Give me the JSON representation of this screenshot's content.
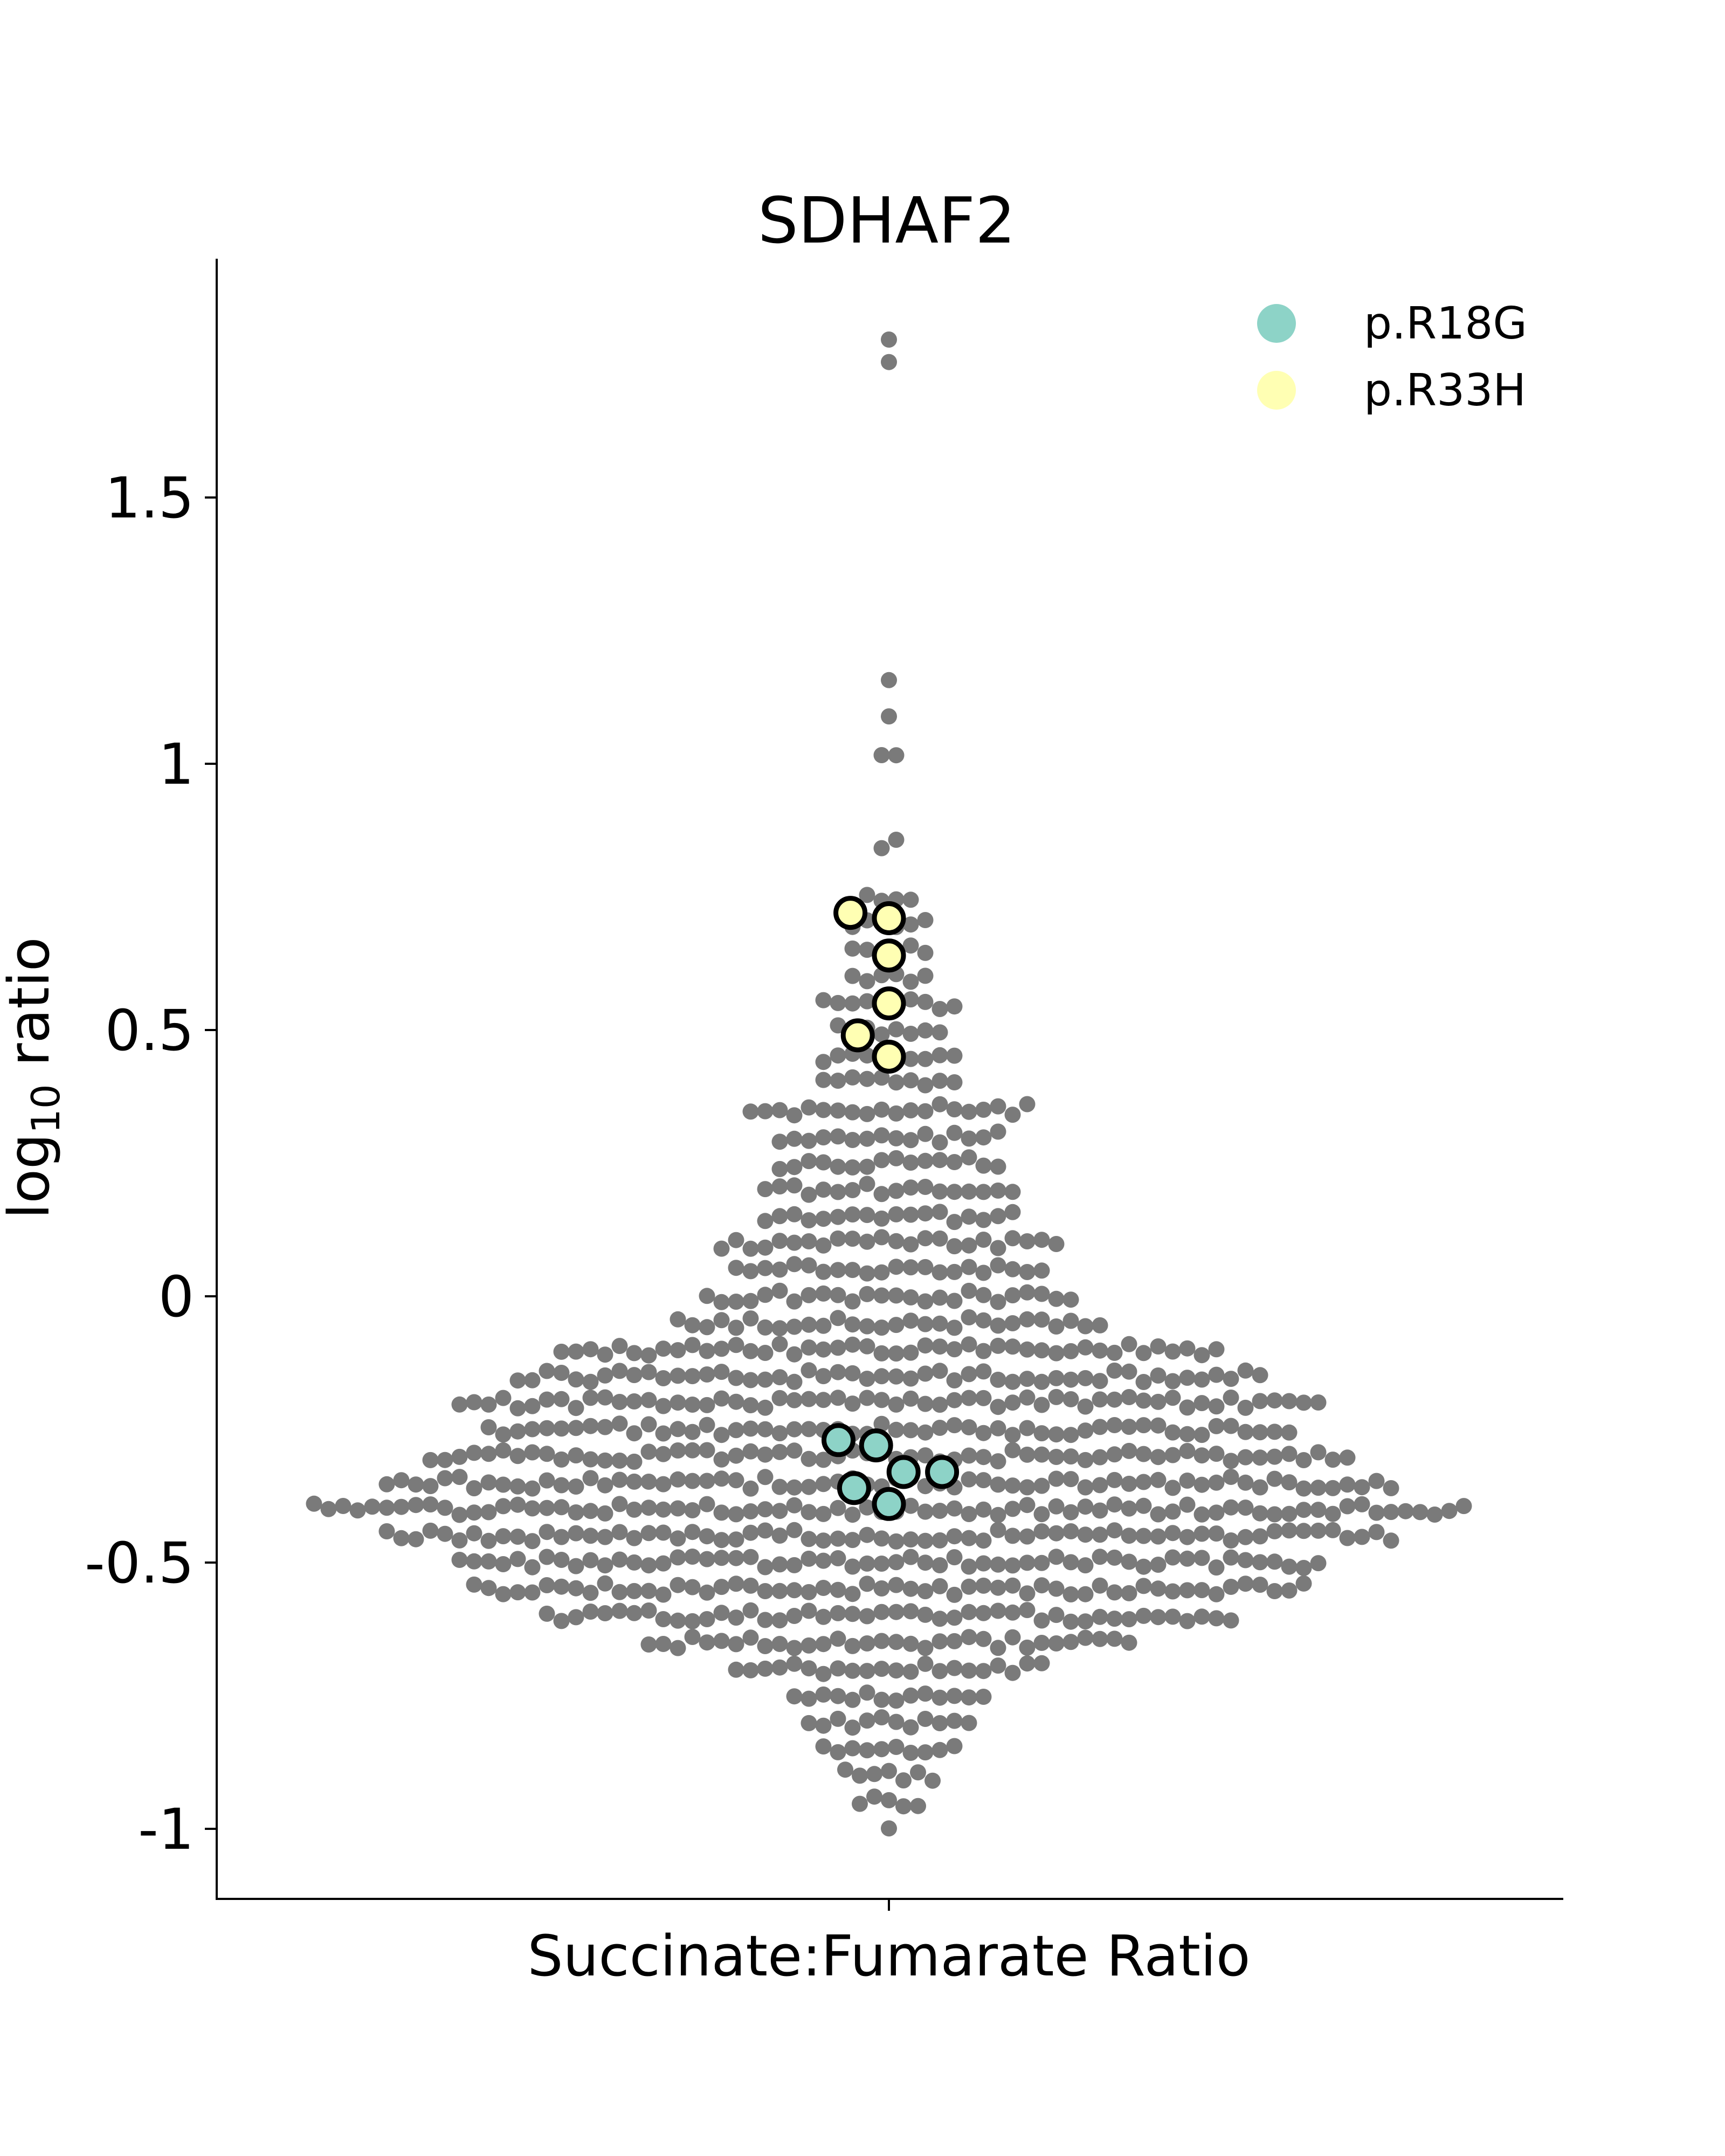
{
  "chart_data": {
    "type": "scatter",
    "subtype": "swarm",
    "title": "SDHAF2",
    "xlabel": "Succinate:Fumarate Ratio",
    "ylabel": "log",
    "ylabel_subscript": "10",
    "ylabel_suffix": " ratio",
    "ylim": [
      -1.13,
      1.94
    ],
    "yticks": [
      {
        "value": -1,
        "label": "-1"
      },
      {
        "value": -0.5,
        "label": "-0.5"
      },
      {
        "value": 0,
        "label": "0"
      },
      {
        "value": 0.5,
        "label": "0.5"
      },
      {
        "value": 1,
        "label": "1"
      },
      {
        "value": 1.5,
        "label": "1.5"
      }
    ],
    "grid": false,
    "legend_position": "top-right",
    "background_color": "#7a7a7a",
    "background_distribution": [
      {
        "y": 1.8,
        "count": 1
      },
      {
        "y": 1.75,
        "count": 1
      },
      {
        "y": 1.16,
        "count": 1
      },
      {
        "y": 1.1,
        "count": 1
      },
      {
        "y": 1.02,
        "count": 2
      },
      {
        "y": 0.85,
        "count": 2
      },
      {
        "y": 0.75,
        "count": 4
      },
      {
        "y": 0.7,
        "count": 6
      },
      {
        "y": 0.65,
        "count": 6
      },
      {
        "y": 0.6,
        "count": 6
      },
      {
        "y": 0.55,
        "count": 10
      },
      {
        "y": 0.5,
        "count": 8
      },
      {
        "y": 0.45,
        "count": 10
      },
      {
        "y": 0.4,
        "count": 10
      },
      {
        "y": 0.35,
        "count": 20
      },
      {
        "y": 0.3,
        "count": 16
      },
      {
        "y": 0.25,
        "count": 16
      },
      {
        "y": 0.2,
        "count": 18
      },
      {
        "y": 0.15,
        "count": 18
      },
      {
        "y": 0.1,
        "count": 24
      },
      {
        "y": 0.05,
        "count": 22
      },
      {
        "y": 0.0,
        "count": 26
      },
      {
        "y": -0.05,
        "count": 30
      },
      {
        "y": -0.1,
        "count": 46
      },
      {
        "y": -0.15,
        "count": 52
      },
      {
        "y": -0.2,
        "count": 60
      },
      {
        "y": -0.25,
        "count": 56
      },
      {
        "y": -0.3,
        "count": 64
      },
      {
        "y": -0.35,
        "count": 70
      },
      {
        "y": -0.4,
        "count": 80
      },
      {
        "y": -0.45,
        "count": 70
      },
      {
        "y": -0.5,
        "count": 60
      },
      {
        "y": -0.55,
        "count": 58
      },
      {
        "y": -0.6,
        "count": 48
      },
      {
        "y": -0.65,
        "count": 34
      },
      {
        "y": -0.7,
        "count": 22
      },
      {
        "y": -0.75,
        "count": 14
      },
      {
        "y": -0.8,
        "count": 12
      },
      {
        "y": -0.85,
        "count": 10
      },
      {
        "y": -0.9,
        "count": 7
      },
      {
        "y": -0.95,
        "count": 5
      },
      {
        "y": -0.99,
        "count": 1
      }
    ],
    "series": [
      {
        "name": "p.R18G",
        "color": "#8dd3c7",
        "points": [
          {
            "y": -0.27,
            "offset": -0.55
          },
          {
            "y": -0.28,
            "offset": -0.14
          },
          {
            "y": -0.33,
            "offset": 0.16
          },
          {
            "y": -0.33,
            "offset": 0.58
          },
          {
            "y": -0.36,
            "offset": -0.38
          },
          {
            "y": -0.39,
            "offset": 0.0
          }
        ]
      },
      {
        "name": "p.R33H",
        "color": "#ffffb3",
        "points": [
          {
            "y": 0.72,
            "offset": -0.42
          },
          {
            "y": 0.71,
            "offset": 0.0
          },
          {
            "y": 0.64,
            "offset": 0.0
          },
          {
            "y": 0.55,
            "offset": 0.0
          },
          {
            "y": 0.49,
            "offset": -0.34
          },
          {
            "y": 0.45,
            "offset": 0.0
          }
        ]
      }
    ],
    "x_category": "Succinate:Fumarate Ratio"
  }
}
